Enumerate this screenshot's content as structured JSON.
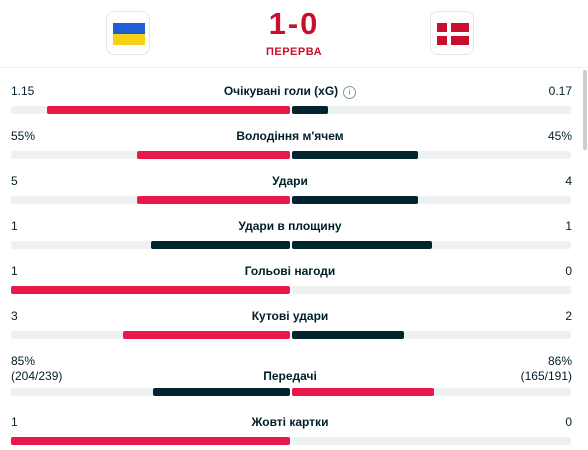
{
  "match": {
    "home_team": "Ukraine",
    "away_team": "Denmark",
    "score": "1-0",
    "period": "ПЕРЕРВА"
  },
  "stats": [
    {
      "label": "Очікувані голи (xG)",
      "home": "1.15",
      "away": "0.17",
      "home_share": 0.87,
      "away_share": 0.13,
      "home_color": "red",
      "away_color": "dark",
      "info": "i"
    },
    {
      "label": "Володіння м'ячем",
      "home": "55%",
      "away": "45%",
      "home_share": 0.55,
      "away_share": 0.45,
      "home_color": "red",
      "away_color": "dark"
    },
    {
      "label": "Удари",
      "home": "5",
      "away": "4",
      "home_share": 0.55,
      "away_share": 0.45,
      "home_color": "red",
      "away_color": "dark"
    },
    {
      "label": "Удари в площину",
      "home": "1",
      "away": "1",
      "home_share": 0.5,
      "away_share": 0.5,
      "home_color": "dark",
      "away_color": "dark"
    },
    {
      "label": "Гольові нагоди",
      "home": "1",
      "away": "0",
      "home_share": 1.0,
      "away_share": 0.0,
      "home_color": "red",
      "away_color": "dark"
    },
    {
      "label": "Кутові удари",
      "home": "3",
      "away": "2",
      "home_share": 0.6,
      "away_share": 0.4,
      "home_color": "red",
      "away_color": "dark"
    },
    {
      "label": "Передачі",
      "home": "85%",
      "away": "86%",
      "home_sub": "(204/239)",
      "away_sub": "(165/191)",
      "home_share": 0.49,
      "away_share": 0.51,
      "home_color": "dark",
      "away_color": "red"
    },
    {
      "label": "Жовті картки",
      "home": "1",
      "away": "0",
      "home_share": 1.0,
      "away_share": 0.0,
      "home_color": "red",
      "away_color": "dark"
    }
  ]
}
